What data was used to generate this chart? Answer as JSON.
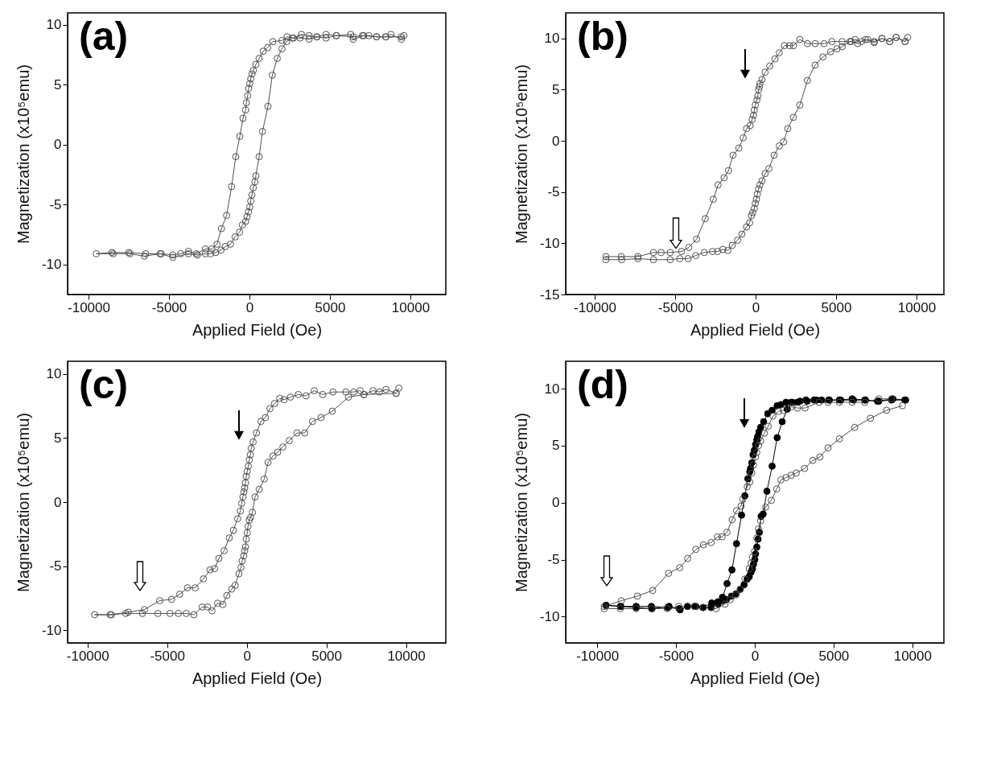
{
  "chart_data": [
    {
      "type": "line",
      "annotations": [
        "(a)"
      ],
      "xlabel": "Applied Field (Oe)",
      "ylabel": "Magnetization (x10⁵emu)",
      "xlim": [
        -11300,
        12200
      ],
      "xticks": [
        -10000,
        -5000,
        0,
        5000,
        10000
      ],
      "ylim": [
        -12.5,
        11
      ],
      "yticks": [
        -10,
        -5,
        0,
        5,
        10
      ],
      "marker": "circle-open",
      "line_style": "solid",
      "series": [
        {
          "color": "#505050",
          "x": [
            9600,
            9440,
            8790,
            8470,
            7900,
            7420,
            7100,
            6450,
            6290,
            5400,
            4760,
            4190,
            3710,
            3230,
            2740,
            2340,
            2020,
            1450,
            1130,
            850,
            600,
            400,
            240,
            160,
            80,
            20,
            -50,
            -110,
            -190,
            -240,
            -400,
            -600,
            -850,
            -1110,
            -1420,
            -1740,
            -2020,
            -2340,
            -2740,
            -3310,
            -3790,
            -4270,
            -4760,
            -5480,
            -6450,
            -7500,
            -8550,
            -9520,
            -8470,
            -7420,
            -6530,
            -5560,
            -4760,
            -3790,
            -3230,
            -2740,
            -2420,
            -2100,
            -1770,
            -1500,
            -1180,
            -890,
            -610,
            -440,
            -240,
            -150,
            -60,
            20,
            80,
            150,
            240,
            340,
            400,
            600,
            810,
            1150,
            1420,
            1730,
            2020,
            2310,
            2660,
            3150,
            3710,
            4190,
            4760,
            5400,
            6450,
            7020,
            7900,
            8470,
            9440
          ],
          "values": [
            9.1,
            8.8,
            9.2,
            9.0,
            9.0,
            9.1,
            9.1,
            8.8,
            9.2,
            9.1,
            9.2,
            9.0,
            9.1,
            9.2,
            8.9,
            9.0,
            8.7,
            8.6,
            8.1,
            7.8,
            7.2,
            6.7,
            6.2,
            5.9,
            5.5,
            5.1,
            4.7,
            4.1,
            3.5,
            2.9,
            2.2,
            0.7,
            -1.0,
            -3.5,
            -5.9,
            -7.0,
            -8.3,
            -8.7,
            -8.7,
            -9.1,
            -8.9,
            -9.1,
            -9.2,
            -9.1,
            -9.1,
            -9.0,
            -9.0,
            -9.1,
            -9.1,
            -9.1,
            -9.3,
            -9.1,
            -9.4,
            -9.1,
            -9.2,
            -9.1,
            -9.1,
            -9.0,
            -8.8,
            -8.5,
            -8.3,
            -7.7,
            -7.3,
            -6.7,
            -6.4,
            -6.0,
            -5.6,
            -5.2,
            -4.7,
            -4.2,
            -3.6,
            -3.1,
            -2.6,
            -1.0,
            1.1,
            3.2,
            5.8,
            7.2,
            8.0,
            8.6,
            8.9,
            8.9,
            8.8,
            9.0,
            8.9,
            9.1,
            9.0,
            9.1,
            9.0,
            9.0,
            9.0
          ]
        }
      ]
    },
    {
      "type": "line",
      "annotations": [
        "(b)"
      ],
      "xlabel": "Applied Field (Oe)",
      "ylabel": "Magnetization (x10⁵emu)",
      "xlim": [
        -11800,
        11700
      ],
      "xticks": [
        -10000,
        -5000,
        0,
        5000,
        10000
      ],
      "ylim": [
        -15,
        12.5
      ],
      "yticks": [
        -15,
        -10,
        -5,
        0,
        5,
        10
      ],
      "marker": "circle-open",
      "line_style": "solid",
      "series": [
        {
          "color": "#505050",
          "x": [
            9450,
            9290,
            8730,
            8330,
            7850,
            7370,
            6970,
            6580,
            6180,
            5940,
            5380,
            4740,
            4260,
            3700,
            3220,
            2750,
            2350,
            2110,
            1790,
            1470,
            1200,
            880,
            590,
            400,
            270,
            240,
            190,
            140,
            80,
            -20,
            -80,
            -130,
            -210,
            -340,
            -560,
            -770,
            -1040,
            -1400,
            -1680,
            -1960,
            -2330,
            -2630,
            -3130,
            -3670,
            -4150,
            -4600,
            -5310,
            -5870,
            -6350,
            -7310,
            -8350,
            -9300,
            -9300,
            -8320,
            -7310,
            -6350,
            -5310,
            -4710,
            -4200,
            -3720,
            -3190,
            -2680,
            -2360,
            -2040,
            -1720,
            -1450,
            -1120,
            -850,
            -560,
            -370,
            -260,
            -180,
            -80,
            -20,
            50,
            110,
            190,
            270,
            400,
            590,
            830,
            1150,
            1470,
            1740,
            2000,
            2350,
            2750,
            3220,
            3700,
            4180,
            4660,
            5060,
            5380,
            5860,
            6340,
            6820,
            7370,
            7850,
            8330,
            8730,
            9290
          ],
          "values": [
            10.1,
            9.7,
            10.1,
            9.7,
            10.0,
            9.7,
            9.9,
            9.7,
            9.9,
            9.7,
            9.7,
            9.7,
            9.5,
            9.5,
            9.5,
            9.9,
            9.3,
            9.3,
            9.3,
            8.6,
            8.0,
            7.3,
            6.7,
            6.0,
            5.6,
            5.3,
            5.0,
            4.4,
            4.0,
            3.5,
            3.0,
            2.5,
            2.1,
            1.5,
            1.2,
            0.3,
            -0.7,
            -1.4,
            -2.9,
            -3.6,
            -4.3,
            -5.7,
            -7.6,
            -9.6,
            -10.4,
            -10.8,
            -10.9,
            -10.9,
            -10.9,
            -11.3,
            -11.3,
            -11.3,
            -11.6,
            -11.6,
            -11.5,
            -11.6,
            -11.6,
            -11.5,
            -11.5,
            -11.2,
            -10.9,
            -10.8,
            -10.8,
            -10.6,
            -10.7,
            -10.2,
            -9.7,
            -9.1,
            -8.4,
            -8.0,
            -7.3,
            -7.0,
            -6.6,
            -6.1,
            -5.7,
            -5.2,
            -4.7,
            -4.3,
            -3.9,
            -3.2,
            -2.7,
            -1.4,
            -0.5,
            -0.1,
            1.2,
            2.3,
            3.5,
            5.9,
            7.4,
            8.2,
            8.7,
            9.0,
            9.2,
            9.7,
            9.5,
            9.9,
            9.6,
            10.0,
            9.7,
            10.1,
            9.7
          ]
        }
      ]
    },
    {
      "type": "line",
      "annotations": [
        "(c)"
      ],
      "xlabel": "Applied Field (Oe)",
      "ylabel": "Magnetization (x10⁵emu)",
      "xlim": [
        -11250,
        12500
      ],
      "xticks": [
        -10000,
        -5000,
        0,
        5000,
        10000
      ],
      "ylim": [
        -11,
        11
      ],
      "yticks": [
        -10,
        -5,
        0,
        5,
        10
      ],
      "marker": "circle-open",
      "line_style": "solid",
      "series": [
        {
          "color": "#505050",
          "x": [
            9550,
            9380,
            8740,
            8330,
            7930,
            7360,
            7120,
            6710,
            6230,
            5420,
            4770,
            4240,
            3720,
            3240,
            2750,
            2350,
            2070,
            1750,
            1460,
            1170,
            890,
            610,
            400,
            280,
            230,
            160,
            100,
            30,
            -30,
            -80,
            -130,
            -180,
            -240,
            -320,
            -400,
            -570,
            -840,
            -1100,
            -1420,
            -1750,
            -2020,
            -2310,
            -2720,
            -3240,
            -3720,
            -4210,
            -4720,
            -5470,
            -6420,
            -7440,
            -8580,
            -9550,
            -8490,
            -7600,
            -6550,
            -5580,
            -4820,
            -4290,
            -3800,
            -3320,
            -2800,
            -2460,
            -2180,
            -1830,
            -1500,
            -1250,
            -940,
            -730,
            -490,
            -360,
            -290,
            -190,
            -130,
            -80,
            -30,
            30,
            80,
            160,
            240,
            360,
            520,
            780,
            1100,
            1340,
            1650,
            1940,
            2270,
            2670,
            3160,
            3640,
            4130,
            4660,
            5370,
            6390,
            7360,
            9380
          ],
          "values": [
            8.9,
            8.5,
            8.8,
            8.6,
            8.7,
            8.4,
            8.7,
            8.6,
            8.6,
            8.6,
            8.4,
            8.7,
            8.3,
            8.4,
            8.2,
            8.0,
            8.1,
            7.7,
            7.3,
            6.6,
            6.3,
            5.4,
            4.7,
            4.2,
            3.7,
            3.3,
            2.8,
            2.4,
            2.0,
            1.5,
            1.1,
            0.8,
            0.4,
            -0.1,
            -0.7,
            -1.3,
            -2.2,
            -2.8,
            -3.8,
            -4.4,
            -5.2,
            -5.3,
            -6.0,
            -6.7,
            -6.7,
            -7.2,
            -7.6,
            -7.7,
            -8.4,
            -8.6,
            -8.8,
            -8.8,
            -8.8,
            -8.7,
            -8.7,
            -8.7,
            -8.7,
            -8.7,
            -8.7,
            -8.8,
            -8.2,
            -8.2,
            -8.5,
            -7.9,
            -8.0,
            -7.3,
            -6.8,
            -6.5,
            -5.6,
            -5.1,
            -4.6,
            -4.2,
            -3.8,
            -3.5,
            -2.9,
            -2.4,
            -1.9,
            -1.4,
            -1.2,
            -0.8,
            0.4,
            1.0,
            1.8,
            3.1,
            3.6,
            3.9,
            4.3,
            4.8,
            5.4,
            5.4,
            6.3,
            6.6,
            7.1,
            8.2,
            8.4,
            8.5
          ]
        }
      ]
    },
    {
      "type": "line",
      "annotations": [
        "(d)"
      ],
      "xlabel": "Applied Field (Oe)",
      "ylabel": "Magnetization (x10⁵emu)",
      "xlim": [
        -12000,
        12000
      ],
      "xticks": [
        -10000,
        -5000,
        0,
        5000,
        10000
      ],
      "ylim": [
        -12.3,
        12.4
      ],
      "yticks": [
        -10,
        -5,
        0,
        5,
        10
      ],
      "marker": "circle-open",
      "line_style": "solid",
      "series": [
        {
          "color": "#000000",
          "marker": "circle",
          "x": [
            9570,
            8760,
            7790,
            7020,
            6180,
            5370,
            4730,
            3920,
            3240,
            2710,
            2310,
            1980,
            1660,
            1420,
            1100,
            820,
            560,
            370,
            260,
            180,
            130,
            50,
            -30,
            -110,
            -190,
            -270,
            -320,
            -440,
            -630,
            -840,
            -1160,
            -1450,
            -1760,
            -2050,
            -2340,
            -2770,
            -3260,
            -3740,
            -4270,
            -4740,
            -5440,
            -6520,
            -7530,
            -8530,
            -9440,
            -8500,
            -7530,
            -6560,
            -5520,
            -4790,
            -3820,
            -3300,
            -2730,
            -2340,
            -2050,
            -1810,
            -1480,
            -1190,
            -920,
            -680,
            -480,
            -350,
            -240,
            -150,
            -80,
            0,
            50,
            130,
            210,
            290,
            400,
            530,
            770,
            1100,
            1420,
            1740,
            2060,
            2390,
            2870,
            3330,
            3760,
            4240,
            4690,
            5450,
            6260,
            6980,
            7870,
            8680,
            9520
          ],
          "values": [
            9.0,
            9.1,
            8.9,
            9.0,
            9.1,
            9.0,
            9.0,
            9.0,
            9.0,
            8.8,
            8.8,
            8.8,
            8.6,
            8.5,
            8.1,
            7.8,
            7.1,
            6.6,
            6.2,
            5.8,
            5.5,
            5.1,
            4.6,
            4.2,
            3.5,
            3.0,
            2.7,
            2.1,
            0.6,
            -1.1,
            -3.6,
            -5.9,
            -7.1,
            -8.3,
            -8.7,
            -9.2,
            -9.2,
            -9.1,
            -9.1,
            -9.4,
            -9.1,
            -9.3,
            -9.2,
            -9.1,
            -9.0,
            -9.1,
            -9.1,
            -9.1,
            -9.2,
            -9.3,
            -9.1,
            -9.2,
            -8.8,
            -8.9,
            -8.6,
            -8.5,
            -8.2,
            -8.0,
            -7.6,
            -7.2,
            -6.7,
            -6.5,
            -6.1,
            -5.8,
            -5.4,
            -5.0,
            -4.5,
            -3.9,
            -3.2,
            -2.6,
            -1.2,
            -1.0,
            1.0,
            3.2,
            5.7,
            7.1,
            8.2,
            8.8,
            8.9,
            8.9,
            9.0,
            9.0,
            9.0,
            9.0,
            9.0,
            9.0,
            8.9,
            9.0,
            9.0
          ]
        },
        {
          "color": "#505050",
          "x": [
            8680,
            7870,
            6980,
            6180,
            5370,
            4650,
            4080,
            3190,
            2710,
            2310,
            1820,
            1500,
            1150,
            850,
            610,
            370,
            240,
            130,
            50,
            -80,
            -190,
            -320,
            -480,
            -760,
            -870,
            -1160,
            -1440,
            -1760,
            -2080,
            -2370,
            -2770,
            -3260,
            -3740,
            -4260,
            -4760,
            -5470,
            -6480,
            -7450,
            -8470,
            -9550,
            -9550,
            -8530,
            -7530,
            -6560,
            -5560,
            -4820,
            -3820,
            -3260,
            -2450,
            -1890,
            -1560,
            -1210,
            -920,
            -630,
            -350,
            -240,
            -150,
            -30,
            130,
            240,
            370,
            690,
            1050,
            1390,
            1660,
            1980,
            2310,
            2630,
            3160,
            3680,
            4130,
            4650,
            5370,
            6340,
            7340,
            8360,
            9370
          ],
          "values": [
            9.1,
            9.1,
            8.8,
            8.8,
            8.8,
            8.8,
            8.8,
            8.3,
            8.3,
            8.4,
            8.1,
            8.0,
            7.6,
            6.7,
            6.1,
            5.4,
            5.0,
            4.4,
            4.0,
            3.3,
            2.6,
            1.8,
            1.4,
            0.3,
            -0.3,
            -0.7,
            -1.5,
            -2.6,
            -3.0,
            -3.0,
            -3.5,
            -3.7,
            -4.1,
            -4.9,
            -5.7,
            -6.2,
            -7.7,
            -8.2,
            -8.6,
            -9.1,
            -9.3,
            -9.3,
            -9.3,
            -9.3,
            -9.3,
            -9.1,
            -9.1,
            -9.2,
            -9.3,
            -8.9,
            -8.5,
            -8.1,
            -7.6,
            -6.7,
            -5.8,
            -5.3,
            -4.8,
            -4.3,
            -3.1,
            -2.3,
            -1.6,
            -0.4,
            0.2,
            1.2,
            2.0,
            2.2,
            2.4,
            2.6,
            3.0,
            3.7,
            4.0,
            4.8,
            5.6,
            6.6,
            7.4,
            8.1,
            8.5
          ]
        }
      ]
    }
  ]
}
